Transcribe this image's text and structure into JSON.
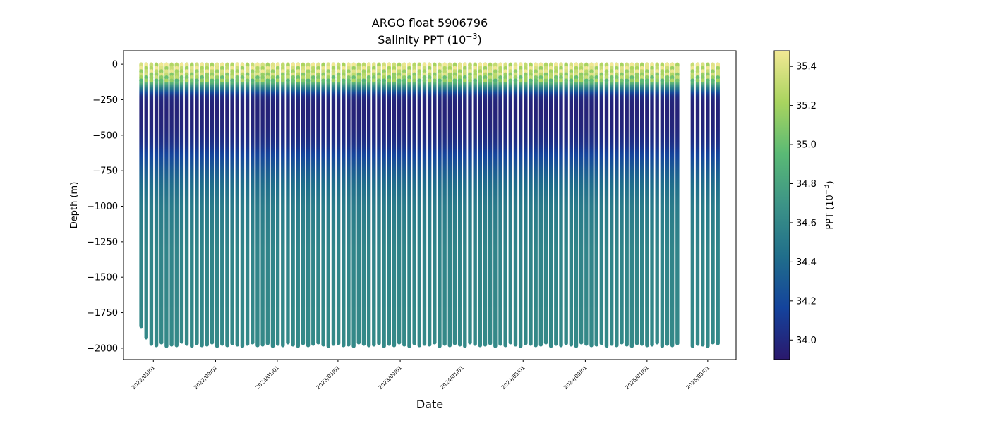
{
  "chart_data": {
    "type": "scatter",
    "title_line1": "ARGO float 5906796",
    "title_line2_base": "Salinity PPT (10",
    "title_line2_exp": "−3",
    "title_line2_end": ")",
    "xlabel": "Date",
    "ylabel": "Depth (m)",
    "colorbar_label_base": "PPT (10",
    "colorbar_label_exp": "−3",
    "colorbar_label_end": ")",
    "colormap": "haline",
    "color_stops": [
      "#2a186c",
      "#14439c",
      "#206e8b",
      "#3c9387",
      "#5aba75",
      "#a9d45f",
      "#f2e894"
    ],
    "ylim": [
      -2080,
      95
    ],
    "y_ticks": [
      0,
      -250,
      -500,
      -750,
      -1000,
      -1250,
      -1500,
      -1750,
      -2000
    ],
    "y_tick_labels": [
      "0",
      "−250",
      "−500",
      "−750",
      "−1000",
      "−1250",
      "−1500",
      "−1750",
      "−2000"
    ],
    "xlim": [
      "2022-03-03",
      "2025-06-26"
    ],
    "x_ticks": [
      "2022-05-01",
      "2022-09-01",
      "2023-01-01",
      "2023-05-01",
      "2023-09-01",
      "2024-01-01",
      "2024-05-01",
      "2024-09-01",
      "2025-01-01",
      "2025-05-01"
    ],
    "x_tick_labels": [
      "2022/05/01",
      "2022/09/01",
      "2023/01/01",
      "2023/05/01",
      "2023/09/01",
      "2024/01/01",
      "2024/05/01",
      "2024/09/01",
      "2025/01/01",
      "2025/05/01"
    ],
    "colorbar_range": [
      33.9,
      35.48
    ],
    "colorbar_ticks": [
      34.0,
      34.2,
      34.4,
      34.6,
      34.8,
      35.0,
      35.2,
      35.4
    ],
    "colorbar_tick_labels": [
      "34.0",
      "34.2",
      "34.4",
      "34.6",
      "34.8",
      "35.0",
      "35.2",
      "35.4"
    ],
    "profile_spacing_days": 10,
    "profile_dates": [
      "2022-04-07",
      "2022-04-17",
      "2022-04-27",
      "2022-05-07",
      "2022-05-17",
      "2022-05-27",
      "2022-06-06",
      "2022-06-16",
      "2022-06-26",
      "2022-07-06",
      "2022-07-16",
      "2022-07-26",
      "2022-08-05",
      "2022-08-15",
      "2022-08-25",
      "2022-09-04",
      "2022-09-14",
      "2022-09-24",
      "2022-10-04",
      "2022-10-14",
      "2022-10-24",
      "2022-11-03",
      "2022-11-13",
      "2022-11-23",
      "2022-12-03",
      "2022-12-13",
      "2022-12-23",
      "2023-01-02",
      "2023-01-12",
      "2023-01-22",
      "2023-02-01",
      "2023-02-11",
      "2023-02-21",
      "2023-03-03",
      "2023-03-13",
      "2023-03-23",
      "2023-04-02",
      "2023-04-12",
      "2023-04-22",
      "2023-05-02",
      "2023-05-12",
      "2023-05-22",
      "2023-06-01",
      "2023-06-11",
      "2023-06-21",
      "2023-07-01",
      "2023-07-11",
      "2023-07-21",
      "2023-07-31",
      "2023-08-10",
      "2023-08-20",
      "2023-08-30",
      "2023-09-09",
      "2023-09-19",
      "2023-09-29",
      "2023-10-09",
      "2023-10-19",
      "2023-10-29",
      "2023-11-08",
      "2023-11-18",
      "2023-11-28",
      "2023-12-08",
      "2023-12-18",
      "2023-12-28",
      "2024-01-07",
      "2024-01-17",
      "2024-01-27",
      "2024-02-06",
      "2024-02-16",
      "2024-02-26",
      "2024-03-07",
      "2024-03-17",
      "2024-03-27",
      "2024-04-06",
      "2024-04-16",
      "2024-04-26",
      "2024-05-06",
      "2024-05-16",
      "2024-05-26",
      "2024-06-05",
      "2024-06-15",
      "2024-06-25",
      "2024-07-05",
      "2024-07-15",
      "2024-07-25",
      "2024-08-04",
      "2024-08-14",
      "2024-08-24",
      "2024-09-03",
      "2024-09-13",
      "2024-09-23",
      "2024-10-03",
      "2024-10-13",
      "2024-10-23",
      "2024-11-02",
      "2024-11-12",
      "2024-11-22",
      "2024-12-02",
      "2024-12-12",
      "2024-12-22",
      "2025-01-01",
      "2025-01-11",
      "2025-01-21",
      "2025-01-31",
      "2025-02-10",
      "2025-02-20",
      "2025-03-02",
      "2025-04-01",
      "2025-04-11",
      "2025-04-21",
      "2025-05-01",
      "2025-05-11",
      "2025-05-21"
    ],
    "profile_max_depths": [
      -1845,
      -1925,
      -1970,
      -1980,
      -1960,
      -1985,
      -1975,
      -1980,
      -1955,
      -1970,
      -1985,
      -1965,
      -1980,
      -1975,
      -1960,
      -1985,
      -1970,
      -1980,
      -1965,
      -1975,
      -1985,
      -1970,
      -1960,
      -1980,
      -1975,
      -1965,
      -1985,
      -1970,
      -1980,
      -1960,
      -1975,
      -1985,
      -1965,
      -1980,
      -1970,
      -1960,
      -1975,
      -1985,
      -1970,
      -1965,
      -1980,
      -1975,
      -1985,
      -1960,
      -1970,
      -1980,
      -1975,
      -1965,
      -1985,
      -1970,
      -1980,
      -1960,
      -1975,
      -1985,
      -1965,
      -1980,
      -1970,
      -1975,
      -1960,
      -1985,
      -1970,
      -1980,
      -1965,
      -1975,
      -1985,
      -1960,
      -1970,
      -1980,
      -1975,
      -1965,
      -1985,
      -1970,
      -1980,
      -1960,
      -1975,
      -1985,
      -1965,
      -1970,
      -1980,
      -1975,
      -1960,
      -1985,
      -1970,
      -1980,
      -1965,
      -1975,
      -1985,
      -1960,
      -1970,
      -1980,
      -1975,
      -1965,
      -1985,
      -1970,
      -1980,
      -1960,
      -1975,
      -1985,
      -1965,
      -1970,
      -1980,
      -1975,
      -1960,
      -1985,
      -1970,
      -1980,
      -1965,
      -1985,
      -1970,
      -1975,
      -1985,
      -1960,
      -1965
    ],
    "depth_profile": {
      "depths": [
        0,
        -60,
        -120,
        -160,
        -200,
        -230,
        -260,
        -330,
        -450,
        -560,
        -660,
        -760,
        -860,
        -1000,
        -1300,
        -1700,
        -2000
      ],
      "salinity": [
        35.38,
        35.3,
        35.05,
        34.6,
        34.2,
        34.0,
        33.98,
        33.96,
        33.98,
        34.05,
        34.2,
        34.33,
        34.43,
        34.52,
        34.58,
        34.6,
        34.62
      ]
    }
  }
}
